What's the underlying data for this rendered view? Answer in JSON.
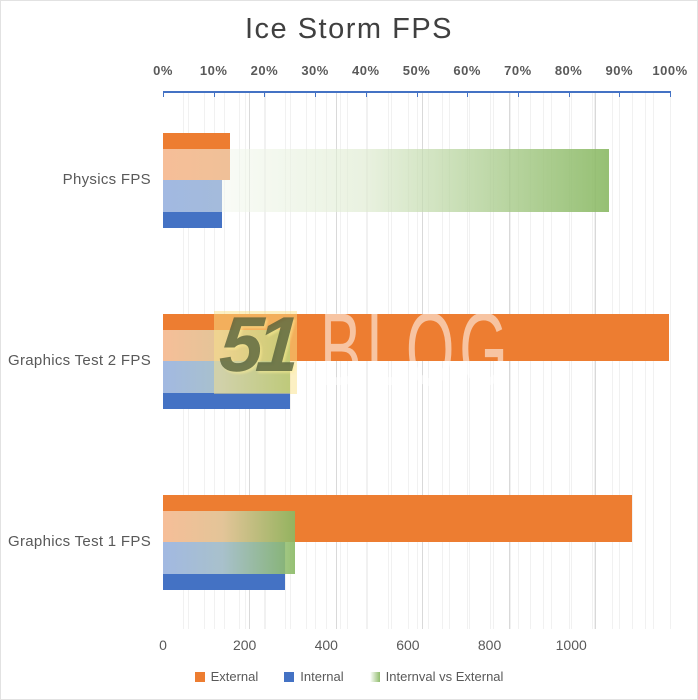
{
  "title": "Ice Storm FPS",
  "watermark": {
    "logo": "51",
    "text": "BLOG"
  },
  "colors": {
    "external": "#ED7D31",
    "internal": "#4472C4",
    "ratio_green": "#70AD47",
    "axis_line": "#4472C4",
    "label_text": "#595959",
    "title_text": "#404040",
    "gridline_minor": "#F1F1F1",
    "gridline_major": "#D9D9D9"
  },
  "legend": {
    "items": [
      {
        "label": "External",
        "swatch": "solid-orange"
      },
      {
        "label": "Internal",
        "swatch": "solid-blue"
      },
      {
        "label": "Internval vs External",
        "swatch": "gradient-green"
      }
    ]
  },
  "chart_data": {
    "type": "bar",
    "orientation": "horizontal",
    "title": "Ice Storm FPS",
    "categories": [
      "Physics FPS",
      "Graphics Test 2 FPS",
      "Graphics Test 1 FPS"
    ],
    "series": [
      {
        "name": "External",
        "axis": "value",
        "values": [
          165,
          1240,
          1150
        ]
      },
      {
        "name": "Internal",
        "axis": "value",
        "values": [
          145,
          310,
          300
        ]
      },
      {
        "name": "Internval vs External",
        "axis": "percent",
        "values": [
          88,
          25,
          26
        ]
      }
    ],
    "value_axis": {
      "position": "bottom",
      "min": 0,
      "max": 1242,
      "tick_values": [
        0,
        200,
        400,
        600,
        800,
        1000
      ],
      "tick_labels": [
        "0",
        "200",
        "400",
        "600",
        "800",
        "1000"
      ]
    },
    "percent_axis": {
      "position": "top",
      "min": 0,
      "max": 100,
      "tick_values": [
        0,
        10,
        20,
        30,
        40,
        50,
        60,
        70,
        80,
        90,
        100
      ],
      "tick_labels": [
        "0%",
        "10%",
        "20%",
        "30%",
        "40%",
        "50%",
        "60%",
        "70%",
        "80%",
        "90%",
        "100%"
      ]
    },
    "grid": true,
    "legend_position": "bottom"
  }
}
